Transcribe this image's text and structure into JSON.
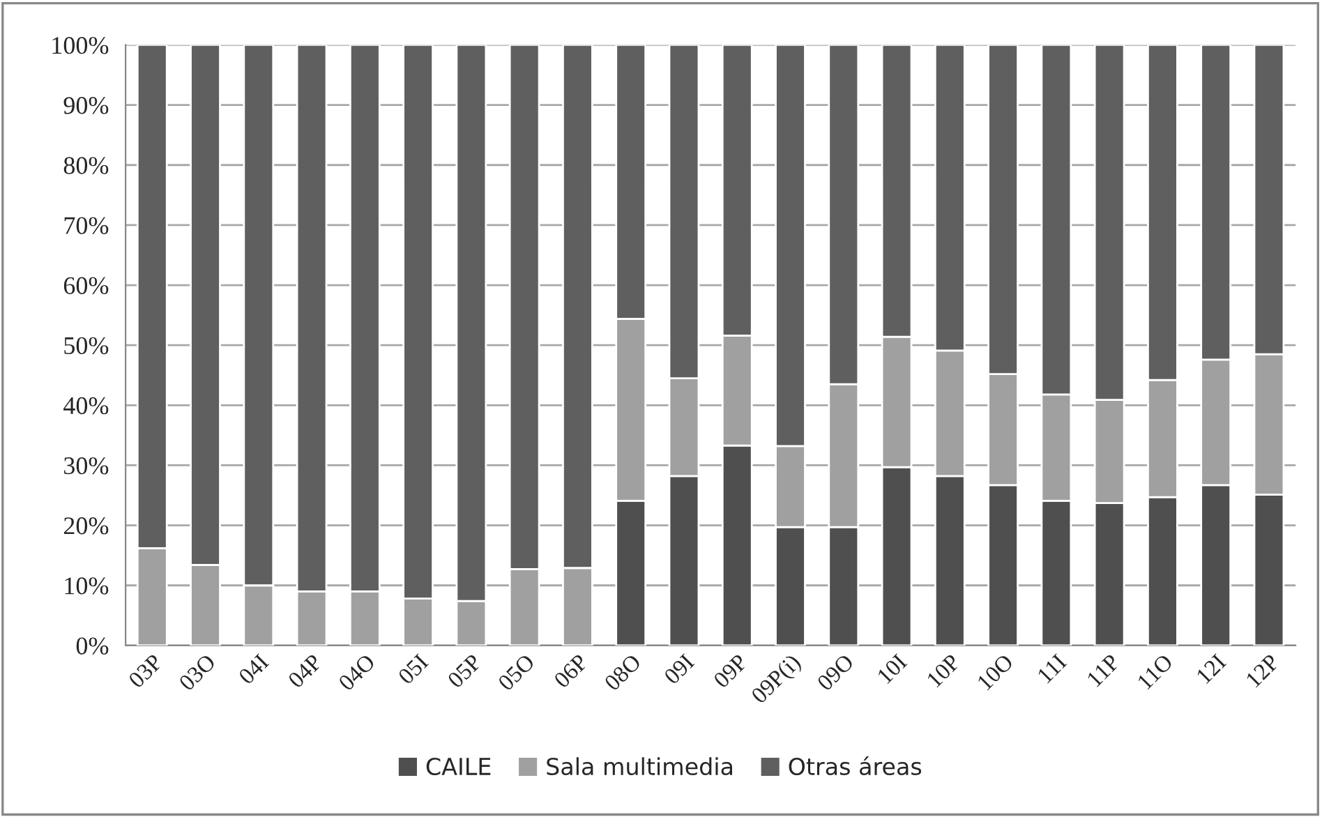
{
  "chart_data": {
    "type": "bar",
    "stacked": true,
    "categories": [
      "03P",
      "03O",
      "04I",
      "04P",
      "04O",
      "05I",
      "05P",
      "05O",
      "06P",
      "08O",
      "09I",
      "09P",
      "09P(i)",
      "09O",
      "10I",
      "10P",
      "10O",
      "11I",
      "11P",
      "11O",
      "12I",
      "12P"
    ],
    "series": [
      {
        "name": "CAILE",
        "color": "#4f4f4f",
        "values": [
          0,
          0,
          0,
          0,
          0,
          0,
          0,
          0,
          0,
          24.1,
          28.2,
          33.3,
          19.7,
          19.7,
          29.7,
          28.2,
          26.7,
          24.1,
          23.7,
          24.7,
          26.7,
          25.1
        ]
      },
      {
        "name": "Sala multimedia",
        "color": "#a0a0a0",
        "values": [
          16.2,
          13.4,
          10.0,
          9.0,
          9.0,
          7.8,
          7.4,
          12.7,
          12.9,
          30.3,
          16.3,
          18.3,
          13.5,
          23.8,
          21.7,
          20.9,
          18.5,
          17.7,
          17.2,
          19.5,
          20.9,
          23.4
        ]
      },
      {
        "name": "Otras áreas",
        "color": "#5f5f5f",
        "values": [
          83.8,
          86.6,
          90.0,
          91.0,
          91.0,
          92.2,
          92.6,
          87.3,
          87.1,
          45.6,
          55.5,
          48.4,
          66.8,
          56.5,
          48.6,
          50.9,
          54.8,
          58.2,
          59.1,
          55.8,
          52.4,
          51.5
        ]
      }
    ],
    "ylim": [
      0,
      100
    ],
    "yticks": [
      {
        "value": 0,
        "label": "0%"
      },
      {
        "value": 10,
        "label": "10%"
      },
      {
        "value": 20,
        "label": "20%"
      },
      {
        "value": 30,
        "label": "30%"
      },
      {
        "value": 40,
        "label": "40%"
      },
      {
        "value": 50,
        "label": "50%"
      },
      {
        "value": 60,
        "label": "60%"
      },
      {
        "value": 70,
        "label": "70%"
      },
      {
        "value": 80,
        "label": "80%"
      },
      {
        "value": 90,
        "label": "90%"
      },
      {
        "value": 100,
        "label": "100%"
      }
    ],
    "grid": "y",
    "legend": "bottom"
  }
}
